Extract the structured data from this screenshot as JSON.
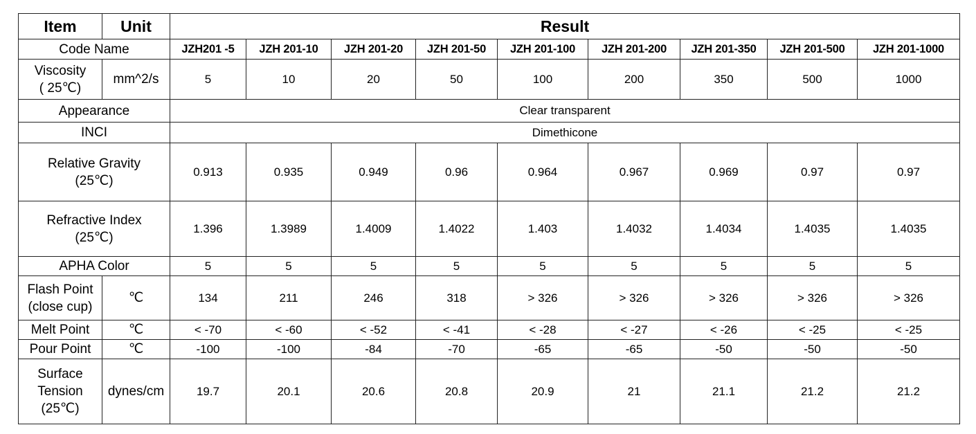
{
  "header": {
    "item": "Item",
    "unit": "Unit",
    "result": "Result"
  },
  "code_name": {
    "label": "Code Name",
    "codes": [
      "JZH201 -5",
      "JZH 201-10",
      "JZH 201-20",
      "JZH 201-50",
      "JZH 201-100",
      "JZH 201-200",
      "JZH 201-350",
      "JZH 201-500",
      "JZH 201-1000"
    ]
  },
  "rows": [
    {
      "label": [
        "Viscosity",
        "( 25℃)"
      ],
      "unit": "mm^2/s",
      "values": [
        "5",
        "10",
        "20",
        "50",
        "100",
        "200",
        "350",
        "500",
        "1000"
      ]
    },
    {
      "label": [
        "Appearance"
      ],
      "value": "Clear transparent"
    },
    {
      "label": [
        "INCI"
      ],
      "value": "Dimethicone"
    },
    {
      "label": [
        "Relative Gravity",
        "(25℃)"
      ],
      "values": [
        "0.913",
        "0.935",
        "0.949",
        "0.96",
        "0.964",
        "0.967",
        "0.969",
        "0.97",
        "0.97"
      ]
    },
    {
      "label": [
        "Refractive Index",
        "(25℃)"
      ],
      "values": [
        "1.396",
        "1.3989",
        "1.4009",
        "1.4022",
        "1.403",
        "1.4032",
        "1.4034",
        "1.4035",
        "1.4035"
      ]
    },
    {
      "label": [
        "APHA Color"
      ],
      "values": [
        "5",
        "5",
        "5",
        "5",
        "5",
        "5",
        "5",
        "5",
        "5"
      ]
    },
    {
      "label": [
        "Flash Point",
        "(close cup)"
      ],
      "unit": "℃",
      "values": [
        "134",
        "211",
        "246",
        "318",
        "> 326",
        "> 326",
        "> 326",
        "> 326",
        "> 326"
      ]
    },
    {
      "label": [
        "Melt Point"
      ],
      "unit": "℃",
      "values": [
        "< -70",
        "< -60",
        "< -52",
        "< -41",
        "< -28",
        "< -27",
        "< -26",
        "< -25",
        "< -25"
      ]
    },
    {
      "label": [
        "Pour Point"
      ],
      "unit": "℃",
      "values": [
        "-100",
        "-100",
        "-84",
        "-70",
        "-65",
        "-65",
        "-50",
        "-50",
        "-50"
      ]
    },
    {
      "label": [
        "Surface",
        "Tension",
        "(25℃)"
      ],
      "unit": "dynes/cm",
      "values": [
        "19.7",
        "20.1",
        "20.6",
        "20.8",
        "20.9",
        "21",
        "21.1",
        "21.2",
        "21.2"
      ]
    }
  ]
}
